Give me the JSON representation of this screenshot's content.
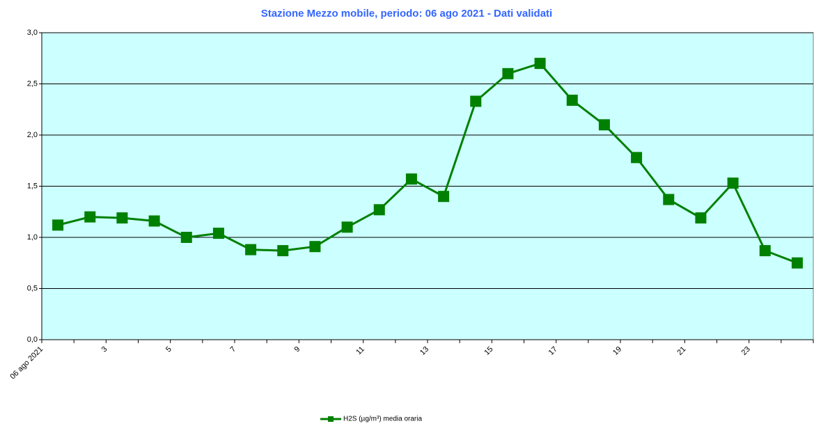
{
  "chart_data": {
    "type": "line",
    "title": "Stazione Mezzo mobile, periodo: 06 ago 2021 - Dati validati",
    "categories": [
      "06 ago 2021",
      null,
      "3",
      null,
      "5",
      null,
      "7",
      null,
      "9",
      null,
      "11",
      null,
      "13",
      null,
      "15",
      null,
      "17",
      null,
      "19",
      null,
      "21",
      null,
      "23",
      null
    ],
    "series": [
      {
        "name": "H2S (µg/m³) media oraria",
        "color": "#008000",
        "values": [
          1.12,
          1.2,
          1.19,
          1.16,
          1.0,
          1.04,
          0.88,
          0.87,
          0.91,
          1.1,
          1.27,
          1.57,
          1.4,
          2.33,
          2.6,
          2.7,
          2.34,
          2.1,
          1.78,
          1.37,
          1.19,
          1.53,
          0.87,
          0.75
        ]
      }
    ],
    "ylim": [
      0,
      3
    ],
    "yticks": [
      {
        "value": 0,
        "label": "0,0"
      },
      {
        "value": 0.5,
        "label": "0,5"
      },
      {
        "value": 1,
        "label": "1,0"
      },
      {
        "value": 1.5,
        "label": "1,5"
      },
      {
        "value": 2,
        "label": "2,0"
      },
      {
        "value": 2.5,
        "label": "2,5"
      },
      {
        "value": 3,
        "label": "3,0"
      }
    ],
    "grid": true,
    "background": "#ccffff",
    "legend": "bottom"
  }
}
